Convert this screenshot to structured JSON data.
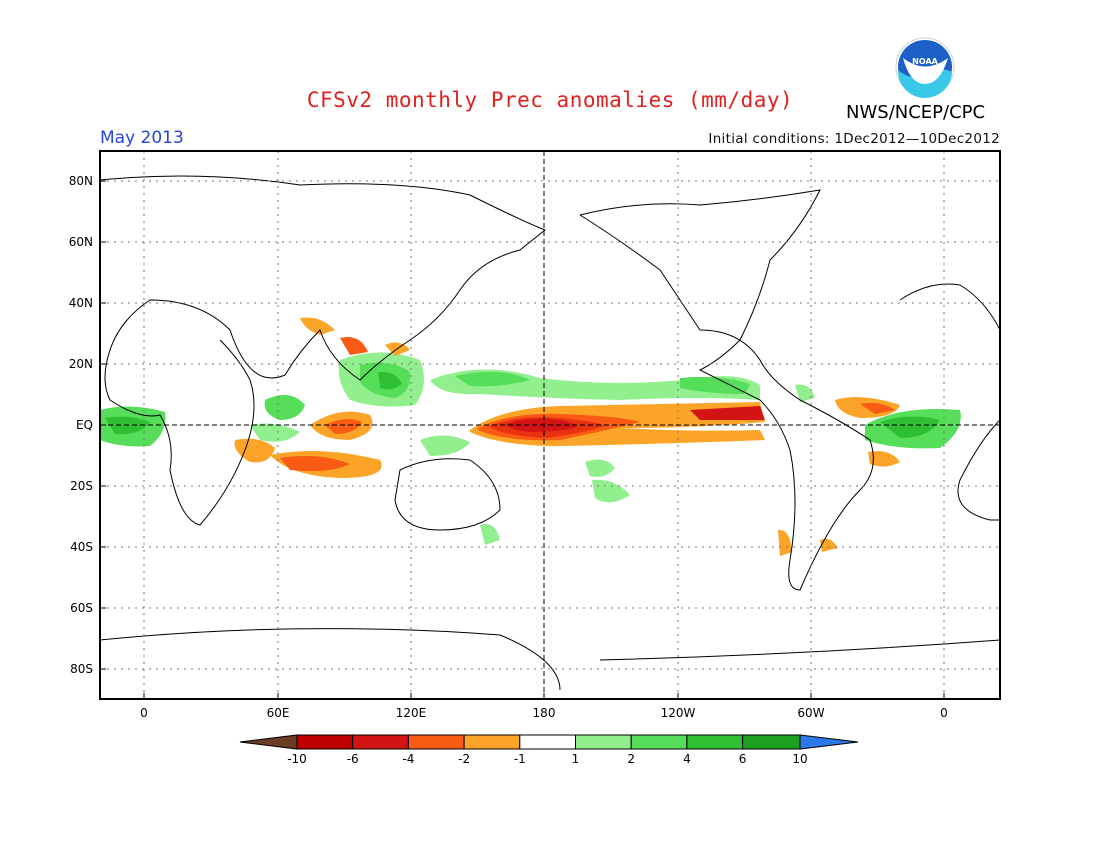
{
  "header": {
    "title": "CFSv2 monthly Prec anomalies (mm/day)",
    "agency": "NWS/NCEP/CPC",
    "logo_text": "NOAA",
    "month": "May 2013",
    "initial_conditions": "Initial conditions: 1Dec2012—10Dec2012"
  },
  "map": {
    "lat_labels": [
      "80N",
      "60N",
      "40N",
      "20N",
      "EQ",
      "20S",
      "40S",
      "60S",
      "80S"
    ],
    "lon_labels": [
      "0",
      "60E",
      "120E",
      "180",
      "120W",
      "60W",
      "0"
    ],
    "lats": [
      80,
      60,
      40,
      20,
      0,
      -20,
      -40,
      -60,
      -80
    ],
    "lons": [
      0,
      60,
      120,
      180,
      240,
      300,
      360
    ]
  },
  "colorbar": {
    "labels": [
      "-10",
      "-6",
      "-4",
      "-2",
      "-1",
      "1",
      "2",
      "4",
      "6",
      "10"
    ],
    "colors": {
      "below_min": "#6b3b24",
      "le_-10": "#bf0000",
      "-10_-6": "#d21414",
      "-6_-4": "#e83212",
      "-4_-2": "#f95a14",
      "-2_-1": "#fca428",
      "-1_1": "#ffffff",
      "1_2": "#92ef8e",
      "2_4": "#56dd59",
      "4_6": "#2fbf33",
      "6_10": "#1ea01f",
      "above_max": "#2a78ea"
    }
  }
}
